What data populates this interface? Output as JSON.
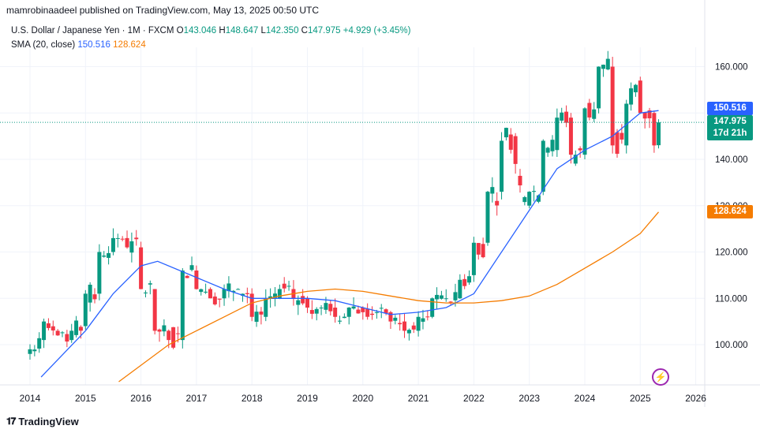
{
  "header": {
    "published_by": "mamrobinaadeel published on TradingView.com, May 13, 2025 00:50 UTC"
  },
  "legend": {
    "symbol": "U.S. Dollar / Japanese Yen · 1M · FXCM",
    "o_label": "O",
    "o_value": "143.046",
    "h_label": "H",
    "h_value": "148.647",
    "l_label": "L",
    "l_value": "142.350",
    "c_label": "C",
    "c_value": "147.975",
    "change": "+4.929 (+3.45%)",
    "sma_label": "SMA (20, close)",
    "sma_fast": "150.516",
    "sma_slow": "128.624"
  },
  "price_tags": {
    "sma_fast": "150.516",
    "last_price": "147.975",
    "countdown": "17d 21h",
    "sma_slow": "128.624"
  },
  "colors": {
    "up": "#089981",
    "down": "#f23645",
    "sma_fast": "#2962ff",
    "sma_slow": "#f57c00",
    "grid": "#f0f3fa"
  },
  "footer": {
    "brand": "TradingView",
    "logo_icon": "tradingview-logo-icon",
    "alert_icon": "lightning-icon"
  },
  "chart_data": {
    "type": "candlestick",
    "interval": "1M",
    "x_axis_ticks": [
      "2014",
      "2015",
      "2016",
      "2017",
      "2018",
      "2019",
      "2020",
      "2021",
      "2022",
      "2023",
      "2024",
      "2025",
      "2026"
    ],
    "y_axis_ticks": [
      "100.000",
      "110.000",
      "120.000",
      "130.000",
      "140.000",
      "150.000",
      "160.000"
    ],
    "ylim": [
      92,
      163
    ],
    "xlim": [
      2014.0,
      2026.2
    ],
    "last_price": 147.975,
    "grid": true,
    "ohlc_samples": [
      {
        "t": 2014.0,
        "o": 98,
        "h": 100,
        "l": 97,
        "c": 99
      },
      {
        "t": 2014.25,
        "o": 101,
        "h": 106,
        "l": 100,
        "c": 105
      },
      {
        "t": 2014.5,
        "o": 103,
        "h": 104,
        "l": 101,
        "c": 102
      },
      {
        "t": 2014.75,
        "o": 101,
        "h": 104,
        "l": 100,
        "c": 103
      },
      {
        "t": 2015.0,
        "o": 104,
        "h": 112,
        "l": 103,
        "c": 111
      },
      {
        "t": 2015.25,
        "o": 111,
        "h": 121,
        "l": 110,
        "c": 120
      },
      {
        "t": 2015.5,
        "o": 120,
        "h": 125,
        "l": 119,
        "c": 123
      },
      {
        "t": 2015.75,
        "o": 123,
        "h": 124,
        "l": 118,
        "c": 121
      },
      {
        "t": 2016.0,
        "o": 121,
        "h": 122,
        "l": 110,
        "c": 112
      },
      {
        "t": 2016.25,
        "o": 112,
        "h": 113,
        "l": 100,
        "c": 103
      },
      {
        "t": 2016.5,
        "o": 103,
        "h": 106,
        "l": 99,
        "c": 101
      },
      {
        "t": 2016.75,
        "o": 101,
        "h": 118,
        "l": 100,
        "c": 116
      },
      {
        "t": 2017.0,
        "o": 116,
        "h": 118,
        "l": 110,
        "c": 112
      },
      {
        "t": 2017.25,
        "o": 112,
        "h": 114,
        "l": 108,
        "c": 110
      },
      {
        "t": 2017.5,
        "o": 110,
        "h": 114,
        "l": 107,
        "c": 112
      },
      {
        "t": 2017.75,
        "o": 112,
        "h": 115,
        "l": 109,
        "c": 112
      },
      {
        "t": 2018.0,
        "o": 111,
        "h": 112,
        "l": 104,
        "c": 106
      },
      {
        "t": 2018.25,
        "o": 106,
        "h": 111,
        "l": 105,
        "c": 110
      },
      {
        "t": 2018.5,
        "o": 110,
        "h": 113,
        "l": 109,
        "c": 112
      },
      {
        "t": 2018.75,
        "o": 112,
        "h": 114,
        "l": 109,
        "c": 110
      },
      {
        "t": 2019.0,
        "o": 110,
        "h": 112,
        "l": 105,
        "c": 108
      },
      {
        "t": 2019.25,
        "o": 108,
        "h": 112,
        "l": 106,
        "c": 108
      },
      {
        "t": 2019.5,
        "o": 108,
        "h": 109,
        "l": 104,
        "c": 106
      },
      {
        "t": 2019.75,
        "o": 106,
        "h": 110,
        "l": 105,
        "c": 108
      },
      {
        "t": 2020.0,
        "o": 108,
        "h": 112,
        "l": 101,
        "c": 107
      },
      {
        "t": 2020.25,
        "o": 107,
        "h": 109,
        "l": 105,
        "c": 107
      },
      {
        "t": 2020.5,
        "o": 107,
        "h": 108,
        "l": 104,
        "c": 105
      },
      {
        "t": 2020.75,
        "o": 105,
        "h": 106,
        "l": 103,
        "c": 103
      },
      {
        "t": 2021.0,
        "o": 103,
        "h": 107,
        "l": 102,
        "c": 106
      },
      {
        "t": 2021.25,
        "o": 106,
        "h": 111,
        "l": 105,
        "c": 110
      },
      {
        "t": 2021.5,
        "o": 110,
        "h": 111,
        "l": 108,
        "c": 110
      },
      {
        "t": 2021.75,
        "o": 110,
        "h": 115,
        "l": 109,
        "c": 114
      },
      {
        "t": 2022.0,
        "o": 115,
        "h": 126,
        "l": 114,
        "c": 122
      },
      {
        "t": 2022.25,
        "o": 122,
        "h": 137,
        "l": 121,
        "c": 133
      },
      {
        "t": 2022.5,
        "o": 133,
        "h": 145,
        "l": 130,
        "c": 144
      },
      {
        "t": 2022.75,
        "o": 145,
        "h": 152,
        "l": 137,
        "c": 139
      },
      {
        "t": 2023.0,
        "o": 130,
        "h": 138,
        "l": 127,
        "c": 133
      },
      {
        "t": 2023.25,
        "o": 133,
        "h": 145,
        "l": 132,
        "c": 144
      },
      {
        "t": 2023.5,
        "o": 142,
        "h": 152,
        "l": 140,
        "c": 149
      },
      {
        "t": 2023.75,
        "o": 149,
        "h": 151,
        "l": 140,
        "c": 141
      },
      {
        "t": 2024.0,
        "o": 141,
        "h": 152,
        "l": 140,
        "c": 151
      },
      {
        "t": 2024.25,
        "o": 151,
        "h": 161,
        "l": 150,
        "c": 160
      },
      {
        "t": 2024.5,
        "o": 160,
        "h": 162,
        "l": 140,
        "c": 143
      },
      {
        "t": 2024.75,
        "o": 143,
        "h": 157,
        "l": 140,
        "c": 152
      },
      {
        "t": 2025.0,
        "o": 157,
        "h": 159,
        "l": 145,
        "c": 150
      },
      {
        "t": 2025.25,
        "o": 150,
        "h": 151,
        "l": 140,
        "c": 143
      },
      {
        "t": 2025.33,
        "o": 143.046,
        "h": 148.647,
        "l": 142.35,
        "c": 147.975
      }
    ],
    "series": [
      {
        "name": "SMA (20, close)",
        "points": [
          [
            2014.2,
            93
          ],
          [
            2015.0,
            103
          ],
          [
            2015.5,
            111
          ],
          [
            2016.0,
            117
          ],
          [
            2016.3,
            118
          ],
          [
            2016.9,
            115
          ],
          [
            2017.5,
            112
          ],
          [
            2018.0,
            110
          ],
          [
            2018.5,
            110
          ],
          [
            2019.0,
            110
          ],
          [
            2019.5,
            109.5
          ],
          [
            2020.0,
            108
          ],
          [
            2020.5,
            106.5
          ],
          [
            2021.0,
            107
          ],
          [
            2021.5,
            108
          ],
          [
            2022.0,
            111
          ],
          [
            2022.5,
            120
          ],
          [
            2023.0,
            129
          ],
          [
            2023.5,
            138
          ],
          [
            2024.0,
            142
          ],
          [
            2024.5,
            145
          ],
          [
            2025.0,
            150
          ],
          [
            2025.33,
            150.516
          ]
        ]
      },
      {
        "name": "SMA (20, close)",
        "points": [
          [
            2015.6,
            92
          ],
          [
            2016.5,
            100
          ],
          [
            2017.0,
            103
          ],
          [
            2017.5,
            106
          ],
          [
            2018.0,
            109
          ],
          [
            2018.5,
            110.5
          ],
          [
            2019.0,
            111.5
          ],
          [
            2019.5,
            112
          ],
          [
            2020.0,
            111.5
          ],
          [
            2020.5,
            110.5
          ],
          [
            2021.0,
            109.5
          ],
          [
            2021.5,
            109
          ],
          [
            2022.0,
            109
          ],
          [
            2022.5,
            109.5
          ],
          [
            2023.0,
            110.5
          ],
          [
            2023.5,
            113
          ],
          [
            2024.0,
            116.5
          ],
          [
            2024.5,
            120
          ],
          [
            2025.0,
            124
          ],
          [
            2025.33,
            128.624
          ]
        ]
      }
    ]
  }
}
